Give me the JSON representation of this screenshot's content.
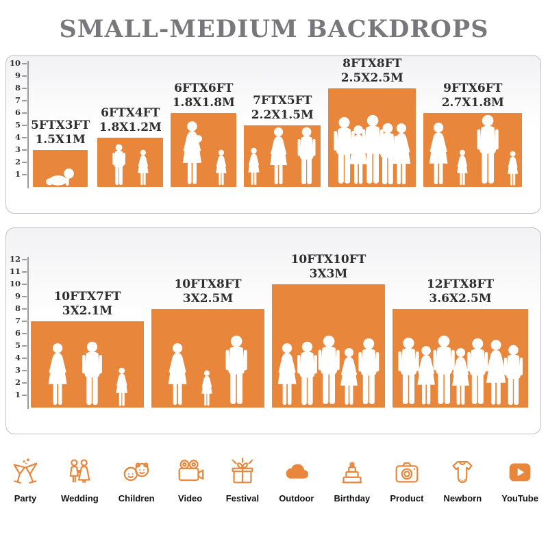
{
  "title": "SMALL-MEDIUM BACKDROPS",
  "accent_color": "#E8863C",
  "chart_data": [
    {
      "type": "bar",
      "panel": "small-medium",
      "ylim": [
        0,
        10
      ],
      "yticks": [
        1,
        2,
        3,
        4,
        5,
        6,
        7,
        8,
        9,
        10
      ],
      "bars": [
        {
          "size_ft": "5FTX3FT",
          "size_m": "1.5X1M",
          "width_ft": 5,
          "height_ft": 3,
          "figures": [
            "baby"
          ]
        },
        {
          "size_ft": "6FTX4FT",
          "size_m": "1.8X1.2M",
          "width_ft": 6,
          "height_ft": 4,
          "figures": [
            "boy",
            "girl"
          ]
        },
        {
          "size_ft": "6FTX6FT",
          "size_m": "1.8X1.8M",
          "width_ft": 6,
          "height_ft": 6,
          "figures": [
            "woman-baby",
            "girl"
          ]
        },
        {
          "size_ft": "7FTX5FT",
          "size_m": "2.2X1.5M",
          "width_ft": 7,
          "height_ft": 5,
          "figures": [
            "girl",
            "woman",
            "man"
          ]
        },
        {
          "size_ft": "8FTX8FT",
          "size_m": "2.5X2.5M",
          "width_ft": 8,
          "height_ft": 8,
          "figures": [
            "man",
            "woman",
            "man",
            "man",
            "woman"
          ]
        },
        {
          "size_ft": "9FTX6FT",
          "size_m": "2.7X1.8M",
          "width_ft": 9,
          "height_ft": 6,
          "figures": [
            "woman",
            "girl",
            "man",
            "girl"
          ]
        }
      ]
    },
    {
      "type": "bar",
      "panel": "medium-large",
      "ylim": [
        0,
        12
      ],
      "yticks": [
        1,
        2,
        3,
        4,
        5,
        6,
        7,
        8,
        9,
        10,
        11,
        12
      ],
      "bars": [
        {
          "size_ft": "10FTX7FT",
          "size_m": "3X2.1M",
          "width_ft": 10,
          "height_ft": 7,
          "figures": [
            "woman",
            "man",
            "girl"
          ]
        },
        {
          "size_ft": "10FTX8FT",
          "size_m": "3X2.5M",
          "width_ft": 10,
          "height_ft": 8,
          "figures": [
            "woman",
            "girl",
            "man"
          ]
        },
        {
          "size_ft": "10FTX10FT",
          "size_m": "3X3M",
          "width_ft": 10,
          "height_ft": 10,
          "figures": [
            "woman",
            "man",
            "man",
            "woman",
            "man"
          ]
        },
        {
          "size_ft": "12FTX8FT",
          "size_m": "3.6X2.5M",
          "width_ft": 12,
          "height_ft": 8,
          "figures": [
            "man",
            "woman",
            "man",
            "woman",
            "man",
            "woman",
            "man"
          ]
        }
      ]
    }
  ],
  "categories": [
    {
      "label": "Party",
      "icon": "party-icon"
    },
    {
      "label": "Wedding",
      "icon": "wedding-icon"
    },
    {
      "label": "Children",
      "icon": "children-icon"
    },
    {
      "label": "Video",
      "icon": "video-icon"
    },
    {
      "label": "Festival",
      "icon": "festival-icon"
    },
    {
      "label": "Outdoor",
      "icon": "outdoor-icon"
    },
    {
      "label": "Birthday",
      "icon": "birthday-icon"
    },
    {
      "label": "Product",
      "icon": "product-icon"
    },
    {
      "label": "Newborn",
      "icon": "newborn-icon"
    },
    {
      "label": "YouTube",
      "icon": "youtube-icon"
    }
  ]
}
